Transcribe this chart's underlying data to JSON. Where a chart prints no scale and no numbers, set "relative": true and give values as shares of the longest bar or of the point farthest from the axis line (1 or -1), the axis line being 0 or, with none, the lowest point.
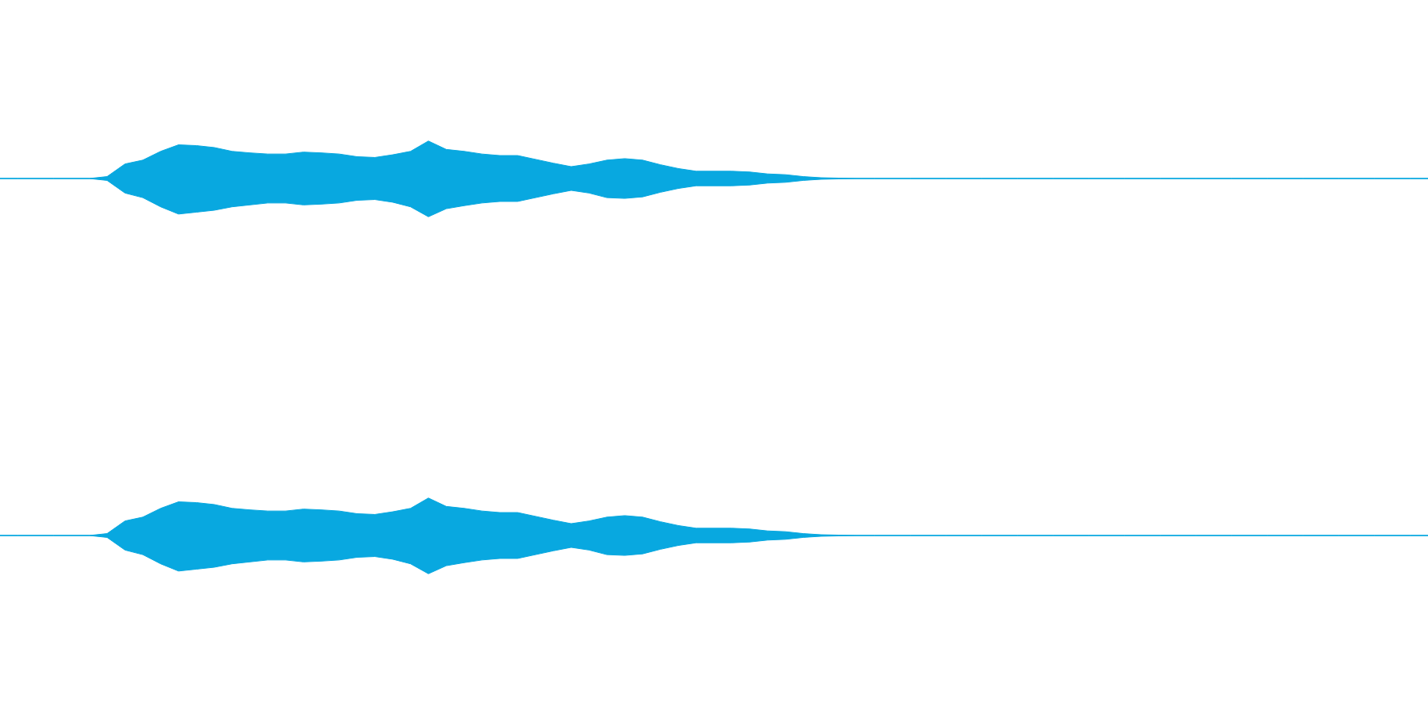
{
  "chart_data": [
    {
      "type": "area",
      "relative": true,
      "categories": [
        null,
        null,
        null,
        null,
        null,
        null,
        null,
        null,
        null,
        null,
        null,
        null,
        null,
        null,
        null,
        null,
        null,
        null,
        null,
        null,
        null,
        null,
        null,
        null,
        null,
        null,
        null,
        null,
        null,
        null,
        null,
        null,
        null,
        null,
        null,
        null,
        null,
        null,
        null,
        null,
        null,
        null,
        null,
        null,
        null,
        null,
        null,
        null,
        null,
        null,
        null,
        null,
        null,
        null,
        null,
        null,
        null,
        null,
        null,
        null,
        null,
        null,
        null,
        null,
        null,
        null,
        null,
        null,
        null,
        null,
        null,
        null,
        null,
        null,
        null,
        null,
        null,
        null,
        null,
        null,
        null
      ],
      "series": [
        {
          "color": "#08a8e0",
          "values": [
            0,
            0,
            0,
            0,
            0,
            0,
            0.05,
            0.38,
            0.48,
            0.71,
            0.88,
            0.86,
            0.81,
            0.71,
            0.67,
            0.64,
            0.64,
            0.69,
            0.67,
            0.64,
            0.57,
            0.55,
            0.62,
            0.71,
            0.98,
            0.76,
            0.71,
            0.64,
            0.6,
            0.6,
            0.5,
            0.4,
            0.31,
            0.38,
            0.48,
            0.52,
            0.48,
            0.36,
            0.26,
            0.19,
            0.19,
            0.19,
            0.17,
            0.12,
            0.1,
            0.05,
            0.02,
            0.01,
            0,
            0,
            0,
            0,
            0,
            0,
            0,
            0,
            0,
            0,
            0,
            0,
            0,
            0,
            0,
            0,
            0,
            0,
            0,
            0,
            0,
            0,
            0,
            0,
            0,
            0,
            0,
            0,
            0,
            0,
            0,
            0,
            0
          ]
        },
        {
          "color": "#08a8e0",
          "values": [
            0,
            0,
            0,
            0,
            0,
            0,
            -0.05,
            -0.38,
            -0.5,
            -0.74,
            -0.93,
            -0.88,
            -0.83,
            -0.74,
            -0.69,
            -0.64,
            -0.64,
            -0.69,
            -0.67,
            -0.64,
            -0.57,
            -0.55,
            -0.62,
            -0.74,
            -1,
            -0.79,
            -0.71,
            -0.64,
            -0.6,
            -0.6,
            -0.5,
            -0.4,
            -0.31,
            -0.38,
            -0.5,
            -0.52,
            -0.48,
            -0.36,
            -0.26,
            -0.19,
            -0.19,
            -0.19,
            -0.17,
            -0.12,
            -0.1,
            -0.05,
            -0.02,
            -0.01,
            0,
            0,
            0,
            0,
            0,
            0,
            0,
            0,
            0,
            0,
            0,
            0,
            0,
            0,
            0,
            0,
            0,
            0,
            0,
            0,
            0,
            0,
            0,
            0,
            0,
            0,
            0,
            0,
            0,
            0,
            0,
            0,
            0
          ]
        }
      ]
    },
    {
      "type": "area",
      "relative": true,
      "categories": [
        null,
        null,
        null,
        null,
        null,
        null,
        null,
        null,
        null,
        null,
        null,
        null,
        null,
        null,
        null,
        null,
        null,
        null,
        null,
        null,
        null,
        null,
        null,
        null,
        null,
        null,
        null,
        null,
        null,
        null,
        null,
        null,
        null,
        null,
        null,
        null,
        null,
        null,
        null,
        null,
        null,
        null,
        null,
        null,
        null,
        null,
        null,
        null,
        null,
        null,
        null,
        null,
        null,
        null,
        null,
        null,
        null,
        null,
        null,
        null,
        null,
        null,
        null,
        null,
        null,
        null,
        null,
        null,
        null,
        null,
        null,
        null,
        null,
        null,
        null,
        null,
        null,
        null,
        null,
        null,
        null
      ],
      "series": [
        {
          "color": "#08a8e0",
          "values": [
            0,
            0,
            0,
            0,
            0,
            0,
            0.05,
            0.38,
            0.48,
            0.71,
            0.88,
            0.86,
            0.81,
            0.71,
            0.67,
            0.64,
            0.64,
            0.69,
            0.67,
            0.64,
            0.57,
            0.55,
            0.62,
            0.71,
            0.98,
            0.76,
            0.71,
            0.64,
            0.6,
            0.6,
            0.5,
            0.4,
            0.31,
            0.38,
            0.48,
            0.52,
            0.48,
            0.36,
            0.26,
            0.19,
            0.19,
            0.19,
            0.17,
            0.12,
            0.1,
            0.05,
            0.02,
            0.01,
            0,
            0,
            0,
            0,
            0,
            0,
            0,
            0,
            0,
            0,
            0,
            0,
            0,
            0,
            0,
            0,
            0,
            0,
            0,
            0,
            0,
            0,
            0,
            0,
            0,
            0,
            0,
            0,
            0,
            0,
            0,
            0,
            0
          ]
        },
        {
          "color": "#08a8e0",
          "values": [
            0,
            0,
            0,
            0,
            0,
            0,
            -0.05,
            -0.38,
            -0.5,
            -0.74,
            -0.93,
            -0.88,
            -0.83,
            -0.74,
            -0.69,
            -0.64,
            -0.64,
            -0.69,
            -0.67,
            -0.64,
            -0.57,
            -0.55,
            -0.62,
            -0.74,
            -1,
            -0.79,
            -0.71,
            -0.64,
            -0.6,
            -0.6,
            -0.5,
            -0.4,
            -0.31,
            -0.38,
            -0.5,
            -0.52,
            -0.48,
            -0.36,
            -0.26,
            -0.19,
            -0.19,
            -0.19,
            -0.17,
            -0.12,
            -0.1,
            -0.05,
            -0.02,
            -0.01,
            0,
            0,
            0,
            0,
            0,
            0,
            0,
            0,
            0,
            0,
            0,
            0,
            0,
            0,
            0,
            0,
            0,
            0,
            0,
            0,
            0,
            0,
            0,
            0,
            0,
            0,
            0,
            0,
            0,
            0,
            0,
            0,
            0
          ]
        }
      ]
    }
  ]
}
